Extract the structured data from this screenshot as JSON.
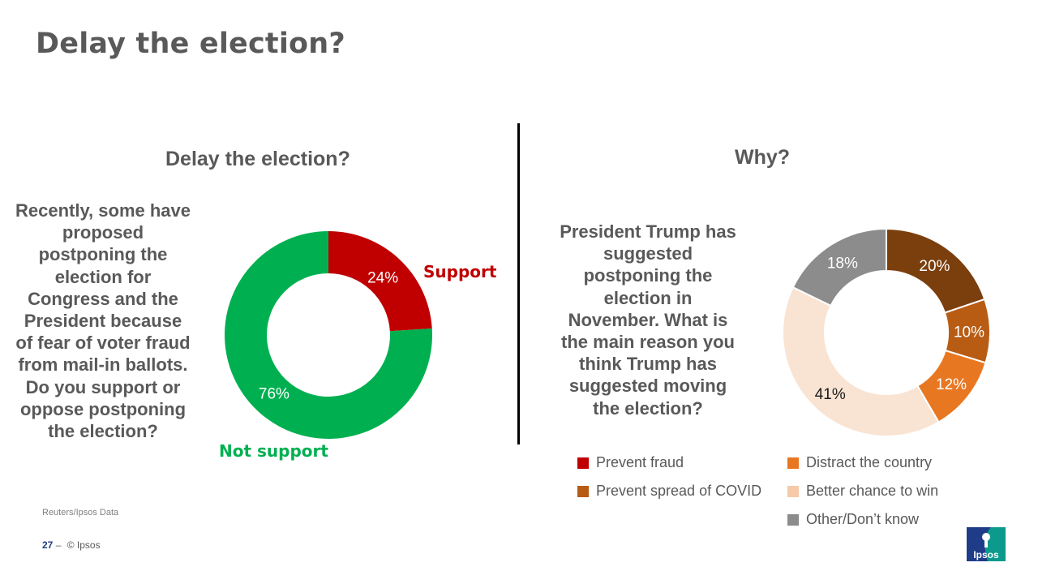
{
  "title": "Delay the election?",
  "chart_data": [
    {
      "type": "donut",
      "title": "Delay the election?",
      "question": "Recently, some have proposed postponing the election for Congress and the President because of fear of voter fraud from mail-in ballots. Do you support or oppose postponing the election?",
      "slices": [
        {
          "label": "Support",
          "value": 24,
          "display": "24%",
          "color": "#c00000"
        },
        {
          "label": "Not support",
          "value": 76,
          "display": "76%",
          "color": "#00b050"
        }
      ]
    },
    {
      "type": "donut",
      "title": "Why?",
      "question": "President Trump has suggested postponing the election in November. What is the main reason you think Trump has suggested moving the election?",
      "slices": [
        {
          "label": "Prevent fraud",
          "value": 20,
          "display": "20%",
          "color": "#7b3f0e"
        },
        {
          "label": "Prevent spread of COVID",
          "value": 10,
          "display": "10%",
          "color": "#b85c14"
        },
        {
          "label": "Distract the country",
          "value": 12,
          "display": "12%",
          "color": "#e87722"
        },
        {
          "label": "Better chance to win",
          "value": 41,
          "display": "41%",
          "color": "#f9e4d4"
        },
        {
          "label": "Other/Don’t know",
          "value": 18,
          "display": "18%",
          "color": "#8c8c8c"
        }
      ],
      "legend": [
        {
          "label": "Prevent fraud",
          "color": "#c00000"
        },
        {
          "label": "Prevent spread of COVID",
          "color": "#b85c14"
        },
        {
          "label": "Distract the country",
          "color": "#e87722"
        },
        {
          "label": "Better chance to win",
          "color": "#f6caa8"
        },
        {
          "label": "Other/Don’t know",
          "color": "#8c8c8c"
        }
      ]
    }
  ],
  "source": "Reuters/Ipsos Data",
  "footer": {
    "page_number": "27",
    "separator": "–",
    "copyright": "© Ipsos"
  },
  "logo_text": "Ipsos"
}
